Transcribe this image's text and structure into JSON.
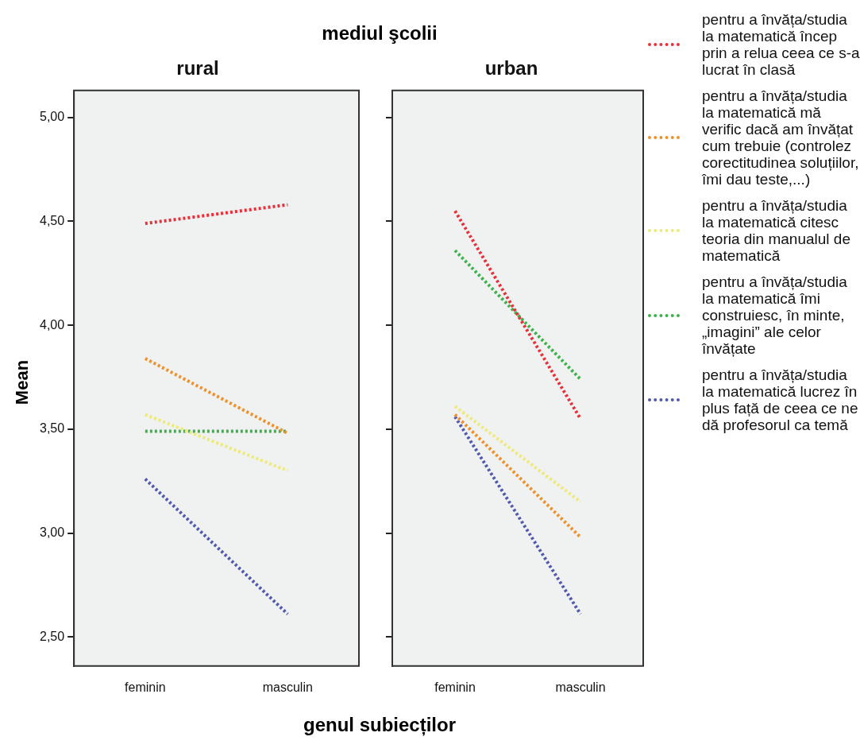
{
  "chart_data": [
    {
      "type": "line",
      "title": "rural",
      "ylabel": "Mean",
      "xlabel": "genul subiecților",
      "annotations": [
        "mediul şcolii"
      ],
      "categories": [
        "feminin",
        "masculin"
      ],
      "ylim": [
        2.36,
        5.13
      ],
      "yticks": [
        {
          "value": 2.5,
          "label": "2,50"
        },
        {
          "value": 3,
          "label": "3,00"
        },
        {
          "value": 3.5,
          "label": "3,50"
        },
        {
          "value": 4,
          "label": "4,00"
        },
        {
          "value": 4.5,
          "label": "4,50"
        },
        {
          "value": 5,
          "label": "5,00"
        }
      ],
      "grid": false,
      "marker": "none",
      "line_style": "dotted",
      "legend": false,
      "series": [
        {
          "color": "#e8303a",
          "values": [
            4.49,
            4.58
          ]
        },
        {
          "color": "#f0902a",
          "values": [
            3.84,
            3.48
          ]
        },
        {
          "color": "#eeea78",
          "values": [
            3.57,
            3.3
          ]
        },
        {
          "color": "#3bb24a",
          "values": [
            3.49,
            3.49
          ]
        },
        {
          "color": "#5058b0",
          "values": [
            3.26,
            2.61
          ]
        }
      ]
    },
    {
      "type": "line",
      "title": "urban",
      "categories": [
        "feminin",
        "masculin"
      ],
      "ylim": [
        2.36,
        5.13
      ],
      "yticks": [
        2.5,
        3,
        3.5,
        4,
        4.5,
        5
      ],
      "tick_labels": "x",
      "grid": false,
      "marker": "none",
      "line_style": "dotted",
      "legend": "right",
      "series": [
        {
          "name": "pentru a învăța/studia la matematică încep prin a relua ceea ce s-a lucrat în clasă",
          "color": "#e8303a",
          "values": [
            4.55,
            3.55
          ]
        },
        {
          "name": "pentru a învăța/studia la matematică mă verific dacă am învățat cum trebuie (controlez corectitudinea soluțiilor, îmi dau teste,...)",
          "color": "#f0902a",
          "values": [
            3.57,
            2.98
          ]
        },
        {
          "name": "pentru a învăța/studia la matematică citesc teoria din manualul de matematică",
          "color": "#eeea78",
          "values": [
            3.61,
            3.15
          ]
        },
        {
          "name": "pentru a învăța/studia la matematică îmi construiesc, în minte, „imagini” ale celor învățate",
          "color": "#3bb24a",
          "values": [
            4.36,
            3.74
          ]
        },
        {
          "name": "pentru a învăța/studia la matematică lucrez în plus față de ceea ce ne dă profesorul ca temă",
          "color": "#5058b0",
          "values": [
            3.56,
            2.61
          ]
        }
      ]
    }
  ]
}
